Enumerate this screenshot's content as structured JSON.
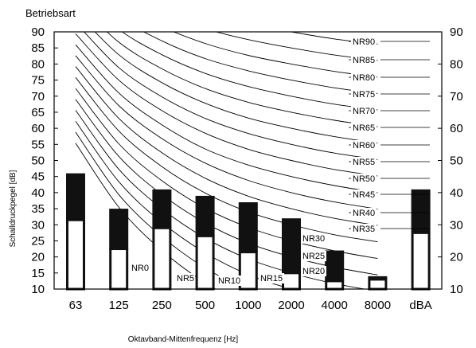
{
  "chart_data": {
    "type": "bar",
    "title": "Betriebsart",
    "xlabel": "Oktavband-Mittenfrequenz [Hz]",
    "ylabel": "Schalldruckpegel [dB]",
    "ylim": [
      10,
      90
    ],
    "y_ticks": [
      10,
      15,
      20,
      25,
      30,
      35,
      40,
      45,
      50,
      55,
      60,
      65,
      70,
      75,
      80,
      85,
      90
    ],
    "y_ticks_right": [
      10,
      20,
      30,
      40,
      50,
      60,
      70,
      80,
      90
    ],
    "categories": [
      "63",
      "125",
      "250",
      "500",
      "1000",
      "2000",
      "4000",
      "8000",
      "dBA"
    ],
    "series": [
      {
        "values": [
          31.5,
          22.5,
          29,
          26.5,
          21.5,
          15,
          12.5,
          13,
          27.5
        ],
        "color": "#ffffff"
      },
      {
        "values": [
          46,
          35,
          41,
          39,
          37,
          32,
          22,
          14,
          41
        ],
        "color": "#111111"
      }
    ],
    "nr_curves": [
      {
        "name": "NR0",
        "values": [
          55.4,
          35.5,
          22,
          12,
          4.8,
          0,
          -3.5,
          -6.1
        ]
      },
      {
        "name": "NR5",
        "values": [
          58.8,
          39.4,
          26.3,
          16.6,
          9.7,
          5,
          1.6,
          -1
        ]
      },
      {
        "name": "NR10",
        "values": [
          62.2,
          43.4,
          30.7,
          21.3,
          14.5,
          10,
          6.6,
          4.2
        ]
      },
      {
        "name": "NR15",
        "values": [
          65.6,
          47.3,
          35,
          25.9,
          19.4,
          15,
          11.7,
          9.3
        ]
      },
      {
        "name": "NR20",
        "values": [
          69,
          51.3,
          39.4,
          30.6,
          24.3,
          20,
          16.8,
          14.4
        ]
      },
      {
        "name": "NR25",
        "values": [
          72.4,
          55.2,
          43.7,
          35.2,
          29.2,
          25,
          21.9,
          19.5
        ]
      },
      {
        "name": "NR30",
        "values": [
          75.8,
          59.2,
          48.1,
          39.9,
          34,
          30,
          26.9,
          24.7
        ]
      },
      {
        "name": "NR35",
        "values": [
          79.2,
          63.1,
          52.4,
          44.5,
          38.9,
          35,
          32,
          29.8
        ]
      },
      {
        "name": "NR40",
        "values": [
          82.6,
          67.1,
          56.8,
          49.2,
          43.8,
          40,
          37.1,
          34.9
        ]
      },
      {
        "name": "NR45",
        "values": [
          86,
          71,
          61.1,
          53.6,
          48.6,
          45,
          42.2,
          40
        ]
      },
      {
        "name": "NR50",
        "values": [
          89.4,
          75,
          65.5,
          58.5,
          53.5,
          50,
          47.2,
          45.2
        ]
      },
      {
        "name": "NR55",
        "values": [
          92.9,
          78.9,
          69.8,
          63.1,
          58.4,
          55,
          52.3,
          50.3
        ]
      },
      {
        "name": "NR60",
        "values": [
          96.3,
          82.9,
          74.2,
          67.8,
          63.2,
          60,
          57.4,
          55.4
        ]
      },
      {
        "name": "NR65",
        "values": [
          99.7,
          86.8,
          78.5,
          72.4,
          68.1,
          65,
          62.5,
          60.5
        ]
      },
      {
        "name": "NR70",
        "values": [
          103.1,
          90.8,
          82.9,
          77.1,
          73,
          70,
          67.5,
          65.7
        ]
      },
      {
        "name": "NR75",
        "values": [
          106.5,
          94.7,
          87.2,
          81.7,
          77.9,
          75,
          72.6,
          70.8
        ]
      },
      {
        "name": "NR80",
        "values": [
          109.9,
          98.7,
          91.6,
          86.4,
          82.7,
          80,
          77.7,
          75.9
        ]
      },
      {
        "name": "NR85",
        "values": [
          113.3,
          102.6,
          95.9,
          91,
          87.6,
          85,
          82.8,
          81.1
        ]
      },
      {
        "name": "NR90",
        "values": [
          116.7,
          106.6,
          100.3,
          95.7,
          92.5,
          90,
          87.8,
          86.2
        ]
      }
    ],
    "grid": false
  }
}
